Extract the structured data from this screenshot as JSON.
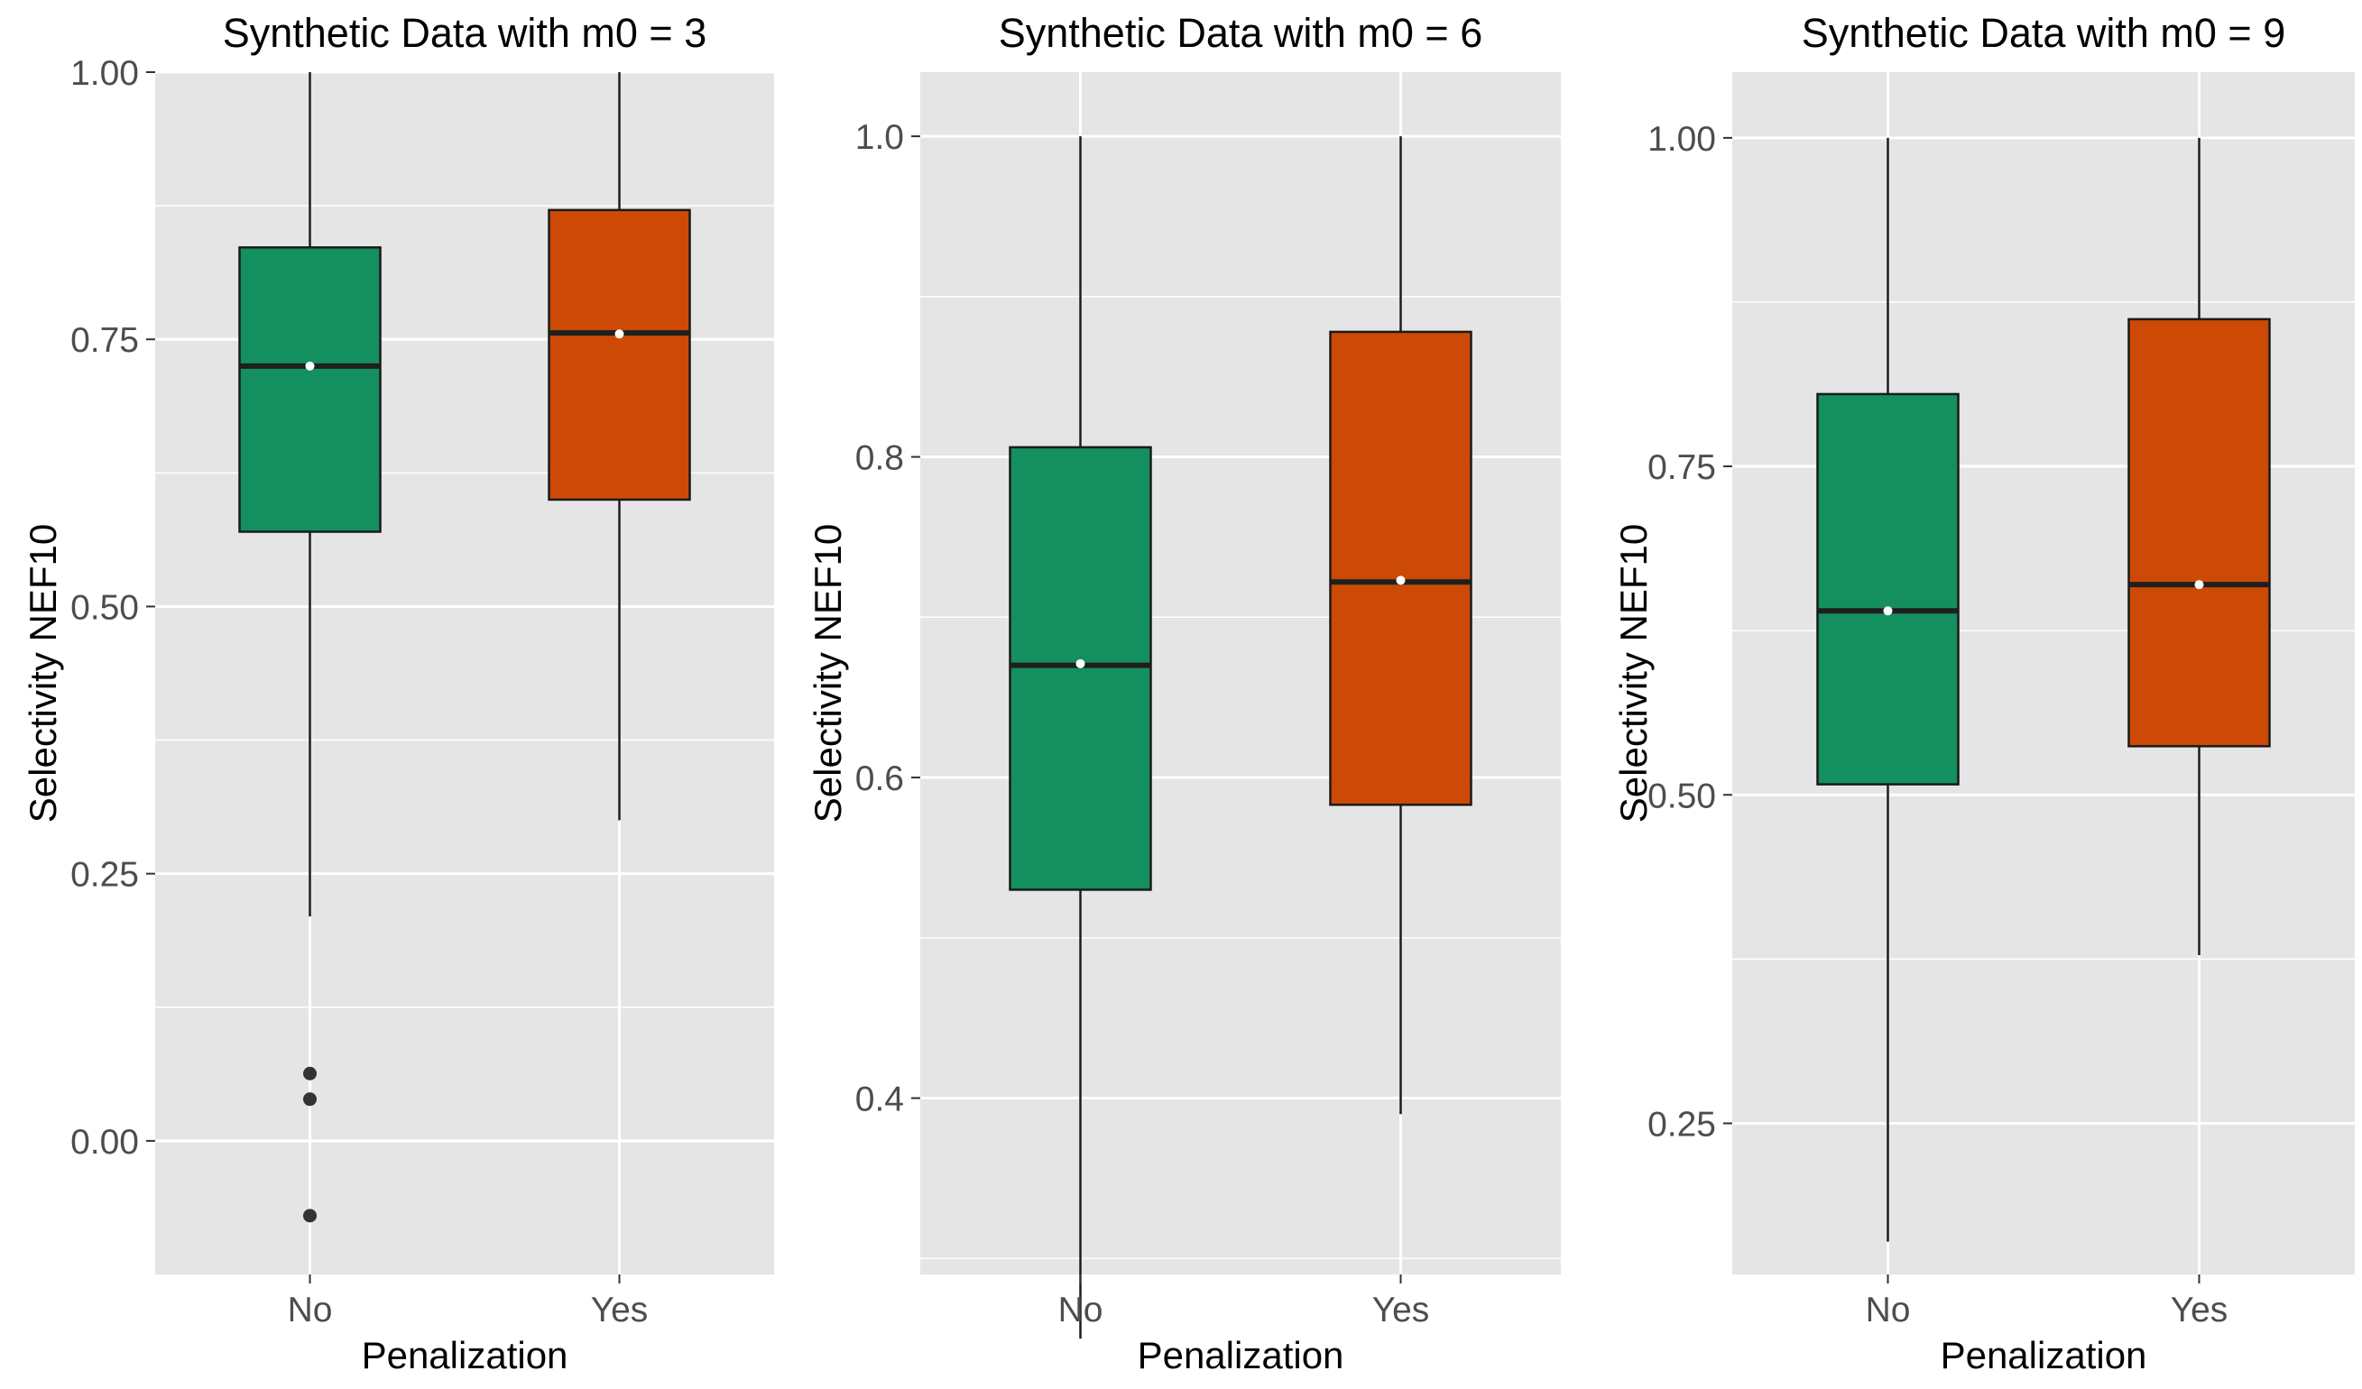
{
  "chart_data": [
    {
      "type": "box",
      "title": "Synthetic Data with m0 = 3",
      "xlabel": "Penalization",
      "ylabel": "Selectivity NEF10",
      "ylim": [
        -0.125,
        1.0
      ],
      "yticks": [
        0.0,
        0.25,
        0.5,
        0.75,
        1.0
      ],
      "ytick_labels": [
        "0.00",
        "0.25",
        "0.50",
        "0.75",
        "1.00"
      ],
      "grid": true,
      "categories": [
        "No",
        "Yes"
      ],
      "boxes": [
        {
          "category": "No",
          "whisker_low": 0.21,
          "q1": 0.57,
          "median": 0.725,
          "mean": 0.725,
          "q3": 0.836,
          "whisker_high": 1.0,
          "outliers": [
            0.063,
            0.039,
            -0.07
          ],
          "color": "#148f5f"
        },
        {
          "category": "Yes",
          "whisker_low": 0.3,
          "q1": 0.6,
          "median": 0.756,
          "mean": 0.755,
          "q3": 0.871,
          "whisker_high": 1.0,
          "outliers": [],
          "color": "#cc4a05"
        }
      ]
    },
    {
      "type": "box",
      "title": "Synthetic Data with m0 = 6",
      "xlabel": "Penalization",
      "ylabel": "Selectivity NEF10",
      "ylim": [
        0.29,
        1.04
      ],
      "yticks": [
        0.4,
        0.6,
        0.8,
        1.0
      ],
      "ytick_labels": [
        "0.4",
        "0.6",
        "0.8",
        "1.0"
      ],
      "grid": true,
      "categories": [
        "No",
        "Yes"
      ],
      "boxes": [
        {
          "category": "No",
          "whisker_low": 0.25,
          "q1": 0.53,
          "median": 0.67,
          "mean": 0.671,
          "q3": 0.806,
          "whisker_high": 1.0,
          "outliers": [],
          "color": "#148f5f"
        },
        {
          "category": "Yes",
          "whisker_low": 0.39,
          "q1": 0.583,
          "median": 0.722,
          "mean": 0.723,
          "q3": 0.878,
          "whisker_high": 1.0,
          "outliers": [],
          "color": "#cc4a05"
        }
      ]
    },
    {
      "type": "box",
      "title": "Synthetic Data with m0 = 9",
      "xlabel": "Penalization",
      "ylabel": "Selectivity NEF10",
      "ylim": [
        0.135,
        1.05
      ],
      "yticks": [
        0.25,
        0.5,
        0.75,
        1.0
      ],
      "ytick_labels": [
        "0.25",
        "0.50",
        "0.75",
        "1.00"
      ],
      "grid": true,
      "categories": [
        "No",
        "Yes"
      ],
      "boxes": [
        {
          "category": "No",
          "whisker_low": 0.16,
          "q1": 0.508,
          "median": 0.64,
          "mean": 0.64,
          "q3": 0.805,
          "whisker_high": 1.0,
          "outliers": [],
          "color": "#148f5f"
        },
        {
          "category": "Yes",
          "whisker_low": 0.378,
          "q1": 0.537,
          "median": 0.66,
          "mean": 0.66,
          "q3": 0.862,
          "whisker_high": 1.0,
          "outliers": [],
          "color": "#cc4a05"
        }
      ]
    }
  ],
  "colors": {
    "panel_background": "#e5e5e5",
    "grid_line": "#ffffff",
    "box_outline": "#1a1a1a",
    "median_line": "#1f1f1f",
    "mean_point": "#ffffff",
    "outlier_point": "#333333",
    "no_box_fill": "#148f5f",
    "yes_box_fill": "#cc4a05"
  }
}
